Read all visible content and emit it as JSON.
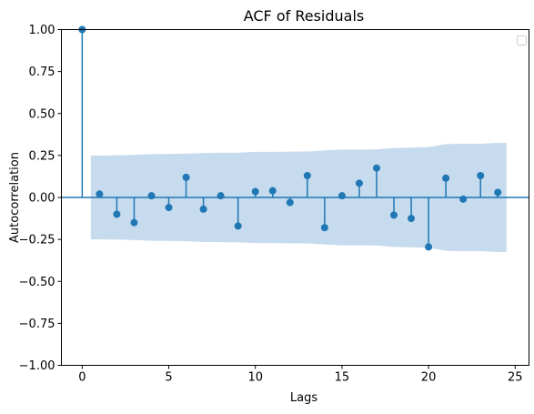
{
  "chart_data": {
    "type": "scatter",
    "title": "ACF of Residuals",
    "xlabel": "Lags",
    "ylabel": "Autocorrelation",
    "xlim": [
      -1.2,
      25.8
    ],
    "ylim": [
      -1.0,
      1.0
    ],
    "xticks": [
      0,
      5,
      10,
      15,
      20,
      25
    ],
    "xtick_labels": [
      "0",
      "5",
      "10",
      "15",
      "20",
      "25"
    ],
    "yticks": [
      -1.0,
      -0.75,
      -0.5,
      -0.25,
      0.0,
      0.25,
      0.5,
      0.75,
      1.0
    ],
    "ytick_labels": [
      "−1.00",
      "−0.75",
      "−0.50",
      "−0.25",
      "0.00",
      "0.25",
      "0.50",
      "0.75",
      "1.00"
    ],
    "grid": false,
    "legend": {
      "placement": "top-right",
      "entries": []
    },
    "series": [
      {
        "lags": [
          0,
          1,
          2,
          3,
          4,
          5,
          6,
          7,
          8,
          9,
          10,
          11,
          12,
          13,
          14,
          15,
          16,
          17,
          18,
          19,
          20,
          21,
          22,
          23,
          24
        ],
        "values": [
          1.0,
          0.02,
          -0.1,
          -0.15,
          0.01,
          -0.06,
          0.12,
          -0.07,
          0.01,
          -0.17,
          0.035,
          0.04,
          -0.03,
          0.13,
          -0.18,
          0.01,
          0.085,
          0.175,
          -0.105,
          -0.125,
          -0.295,
          0.115,
          -0.01,
          0.13,
          0.03
        ]
      }
    ],
    "confidence_band": {
      "lags": [
        0.5,
        1,
        2,
        3,
        4,
        5,
        6,
        7,
        8,
        9,
        10,
        11,
        12,
        13,
        14,
        15,
        16,
        17,
        18,
        19,
        20,
        21,
        22,
        23,
        24,
        24.5
      ],
      "upper": [
        0.25,
        0.25,
        0.251,
        0.254,
        0.258,
        0.259,
        0.261,
        0.265,
        0.266,
        0.267,
        0.272,
        0.272,
        0.273,
        0.274,
        0.28,
        0.285,
        0.285,
        0.286,
        0.295,
        0.297,
        0.3,
        0.318,
        0.32,
        0.32,
        0.325,
        0.325
      ],
      "lower": [
        -0.25,
        -0.25,
        -0.251,
        -0.254,
        -0.258,
        -0.259,
        -0.261,
        -0.265,
        -0.266,
        -0.267,
        -0.272,
        -0.272,
        -0.273,
        -0.274,
        -0.28,
        -0.285,
        -0.285,
        -0.286,
        -0.295,
        -0.297,
        -0.3,
        -0.318,
        -0.32,
        -0.32,
        -0.325,
        -0.325
      ]
    },
    "colors": {
      "series": "#1f77b4",
      "band": "#c6dbee",
      "axes": "#000000"
    }
  }
}
